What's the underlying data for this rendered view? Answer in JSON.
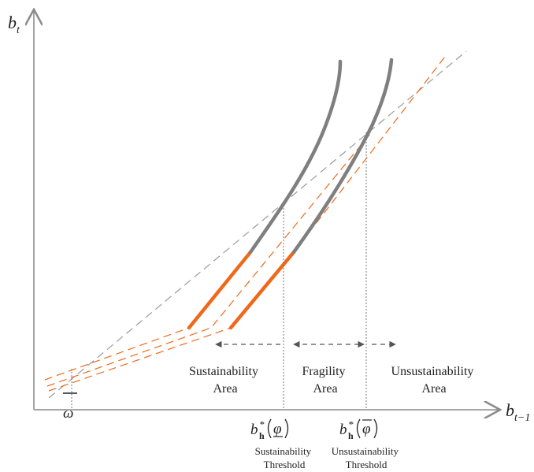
{
  "axes": {
    "y_label": "b",
    "y_sub": "t",
    "x_label": "b",
    "x_sub": "t−1",
    "origin_tick_label": "ω"
  },
  "areas": {
    "sustainability": [
      "Sustainability",
      "Area"
    ],
    "fragility": [
      "Fragility",
      "Area"
    ],
    "unsustainability": [
      "Unsustainability",
      "Area"
    ]
  },
  "thresholds": {
    "lower": {
      "symbol": "b",
      "subscript": "h",
      "superscript": "*",
      "argument": "φ",
      "caption": [
        "Sustainability",
        "Threshold"
      ]
    },
    "upper": {
      "symbol": "b",
      "subscript": "h",
      "superscript": "*",
      "argument": "φ",
      "caption": [
        "Unsustainability",
        "Threshold"
      ]
    }
  },
  "colors": {
    "axis": "#8c8c8c",
    "curve_gray": "#7f7f7f",
    "curve_orange": "#ee6a1a",
    "diagonal": "#9a9a9a",
    "guide": "#777777"
  }
}
